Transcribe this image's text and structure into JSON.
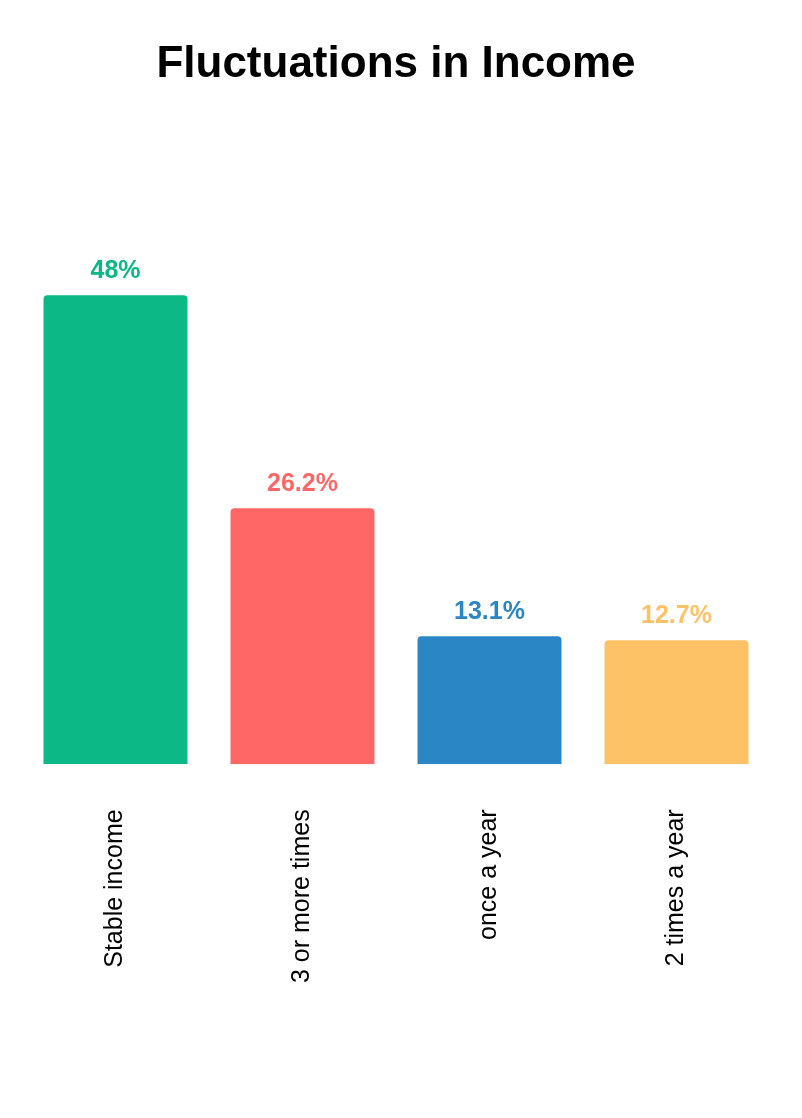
{
  "chart_data": {
    "type": "bar",
    "title": "Fluctuations in Income",
    "categories": [
      "Stable income",
      "3 or more times",
      "once a year",
      "2 times a year"
    ],
    "values": [
      48,
      26.2,
      13.1,
      12.7
    ],
    "colors": [
      "#0bb886",
      "#ff6666",
      "#2a86c4",
      "#fdc166"
    ],
    "value_labels": [
      "48%",
      "26.2%",
      "13.1%",
      "12.7%"
    ],
    "grid": false,
    "legend": false
  }
}
